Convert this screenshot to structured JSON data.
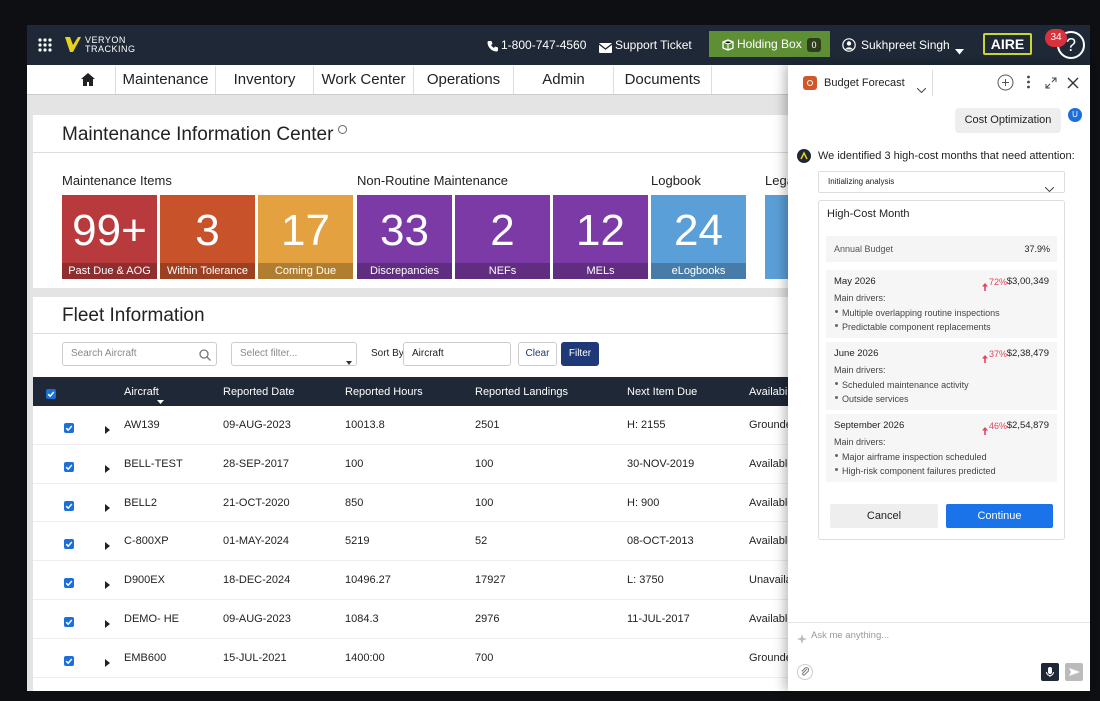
{
  "header": {
    "logo_line1": "VERYON",
    "logo_line2": "TRACKING",
    "phone": "1-800-747-4560",
    "support": "Support Ticket",
    "holding_box": "Holding Box",
    "holding_count": 0,
    "user": "Sukhpreet Singh",
    "aire": "AIRE",
    "notifications": 34,
    "help": "?"
  },
  "nav": [
    "Maintenance",
    "Inventory",
    "Work Center",
    "Operations",
    "Admin",
    "Documents"
  ],
  "info_center": {
    "title": "Maintenance Information Center",
    "groups": [
      "Maintenance Items",
      "Non-Routine Maintenance",
      "Logbook",
      "Legal"
    ],
    "tiles": [
      {
        "value": "99+",
        "label": "Past Due & AOG",
        "color": "#b93a3c"
      },
      {
        "value": 3,
        "label": "Within Tolerance",
        "color": "#c8532b"
      },
      {
        "value": 17,
        "label": "Coming Due",
        "color": "#e3a23f"
      },
      {
        "value": 33,
        "label": "Discrepancies",
        "color": "#7c3aa6"
      },
      {
        "value": 2,
        "label": "NEFs",
        "color": "#7c3aa6"
      },
      {
        "value": 12,
        "label": "MELs",
        "color": "#7c3aa6"
      },
      {
        "value": 24,
        "label": "eLogbooks",
        "color": "#5b9fd8"
      }
    ]
  },
  "fleet": {
    "title": "Fleet Information",
    "search_placeholder": "Search Aircraft",
    "select_placeholder": "Select filter...",
    "sort_label": "Sort By",
    "sort_value": "Aircraft",
    "clear": "Clear",
    "filter": "Filter",
    "columns": [
      "Aircraft",
      "Reported Date",
      "Reported Hours",
      "Reported Landings",
      "Next Item Due",
      "Availability"
    ],
    "rows": [
      [
        "AW139",
        "09-AUG-2023",
        "10013.8",
        "2501",
        "H: 2155",
        "Grounded"
      ],
      [
        "BELL-TEST",
        "28-SEP-2017",
        "100",
        "100",
        "30-NOV-2019",
        "Available"
      ],
      [
        "BELL2",
        "21-OCT-2020",
        "850",
        "100",
        "H: 900",
        "Available"
      ],
      [
        "C-800XP",
        "01-MAY-2024",
        "5219",
        "52",
        "08-OCT-2013",
        "Available"
      ],
      [
        "D900EX",
        "18-DEC-2024",
        "10496.27",
        "17927",
        "L: 3750",
        "Unavailable"
      ],
      [
        "DEMO- HE",
        "09-AUG-2023",
        "1084.3",
        "2976",
        "11-JUL-2017",
        "Available"
      ],
      [
        "EMB600",
        "15-JUL-2021",
        "1400:00",
        "700",
        null,
        "Grounded"
      ]
    ]
  },
  "assistant": {
    "selector": "Budget Forecast",
    "user_avatar": "U",
    "user_message": "Cost Optimization",
    "ai_message": "We identified 3 high-cost months that need attention:",
    "status": "Initializing analysis",
    "card_title": "High-Cost Month",
    "budget_label": "Annual Budget",
    "budget_value": "37.9%",
    "months": [
      {
        "month": "May 2026",
        "change": "72%",
        "amount": "$3,00,349",
        "drivers_label": "Main drivers:",
        "drivers": [
          "Multiple overlapping routine inspections",
          "Predictable component replacements"
        ]
      },
      {
        "month": "June 2026",
        "change": "37%",
        "amount": "$2,38,479",
        "drivers_label": "Main drivers:",
        "drivers": [
          "Scheduled maintenance activity",
          "Outside services"
        ]
      },
      {
        "month": "September 2026",
        "change": "46%",
        "amount": "$2,54,879",
        "drivers_label": "Main drivers:",
        "drivers": [
          "Major airframe inspection scheduled",
          "High-risk component failures predicted"
        ]
      }
    ],
    "cancel": "Cancel",
    "continue": "Continue",
    "input_placeholder": "Ask me anything..."
  }
}
